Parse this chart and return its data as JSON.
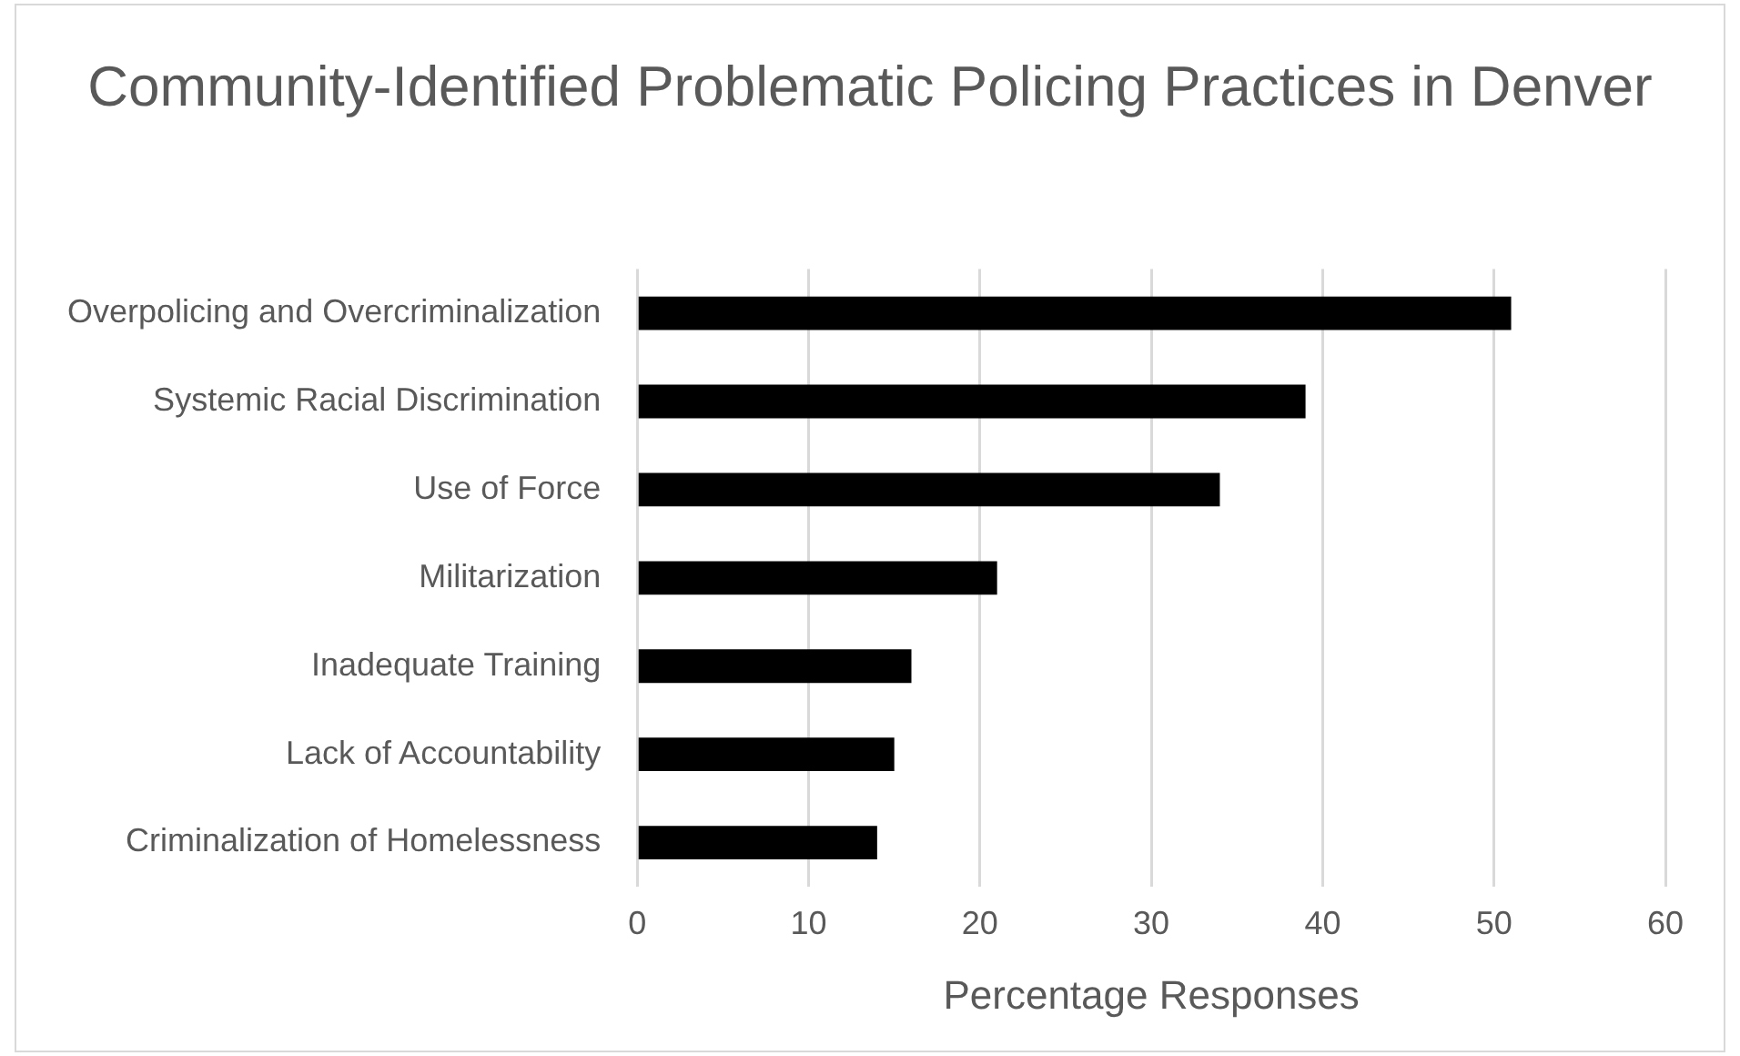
{
  "chart_data": {
    "type": "bar",
    "orientation": "horizontal",
    "title": "Community-Identified Problematic Policing Practices in Denver",
    "xlabel": "Percentage Responses",
    "categories": [
      "Overpolicing and Overcriminalization",
      "Systemic Racial Discrimination",
      "Use of Force",
      "Militarization",
      "Inadequate Training",
      "Lack of Accountability",
      "Criminalization of Homelessness"
    ],
    "values": [
      51,
      39,
      34,
      21,
      16,
      15,
      14
    ],
    "color": "#000000",
    "xlim": [
      0,
      60
    ],
    "xticks": [
      0,
      10,
      20,
      30,
      40,
      50,
      60
    ],
    "grid": "x",
    "legend": false
  }
}
